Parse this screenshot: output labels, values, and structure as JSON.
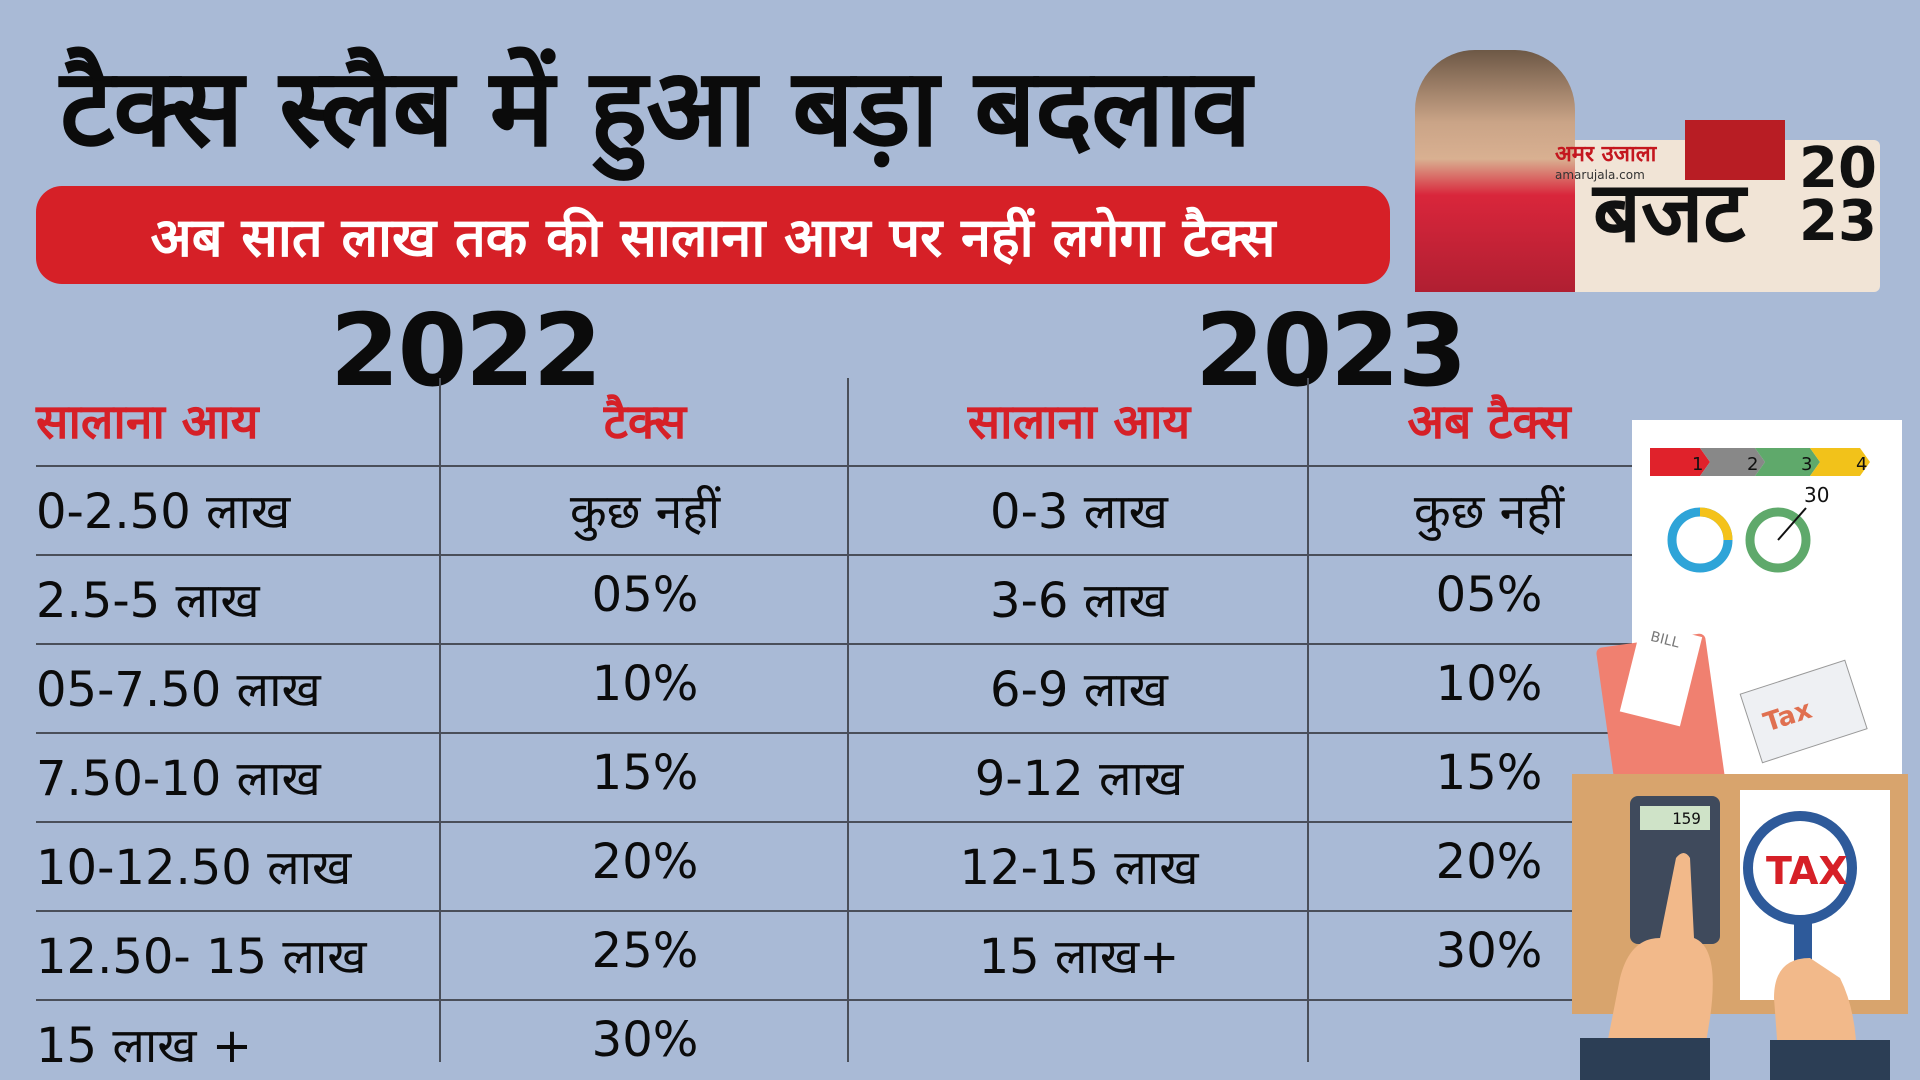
{
  "headline": "टैक्स स्लैब में हुआ बड़ा बदलाव",
  "subtitle": "अब सात लाख तक की सालाना आय पर नहीं लगेगा टैक्स",
  "badge": {
    "brand_hindi": "अमर उजाला",
    "brand_web": "amarujala.com",
    "budget_word": "बजट",
    "year_top": "20",
    "year_bottom": "23"
  },
  "table_2022": {
    "year": "2022",
    "headers": [
      "सालाना आय",
      "टैक्स"
    ],
    "rows": [
      [
        "0-2.50 लाख",
        "कुछ नहीं"
      ],
      [
        "2.5-5 लाख",
        "05%"
      ],
      [
        "05-7.50 लाख",
        "10%"
      ],
      [
        "7.50-10 लाख",
        "15%"
      ],
      [
        "10-12.50 लाख",
        "20%"
      ],
      [
        "12.50- 15 लाख",
        "25%"
      ],
      [
        "15 लाख +",
        "30%"
      ]
    ]
  },
  "table_2023": {
    "year": "2023",
    "headers": [
      "सालाना आय",
      "अब टैक्स"
    ],
    "rows": [
      [
        "0-3 लाख",
        "कुछ नहीं"
      ],
      [
        "3-6 लाख",
        "05%"
      ],
      [
        "6-9 लाख",
        "10%"
      ],
      [
        "9-12 लाख",
        "15%"
      ],
      [
        "12-15 लाख",
        "20%"
      ],
      [
        "15 लाख+",
        "30%"
      ]
    ]
  },
  "illustration": {
    "step_labels": [
      "1",
      "2",
      "3",
      "4"
    ],
    "gauge_value": "30",
    "bill_label": "BILL",
    "envelope_label": "Tax",
    "calculator_display": "159",
    "magnifier_label": "TAX"
  },
  "colors": {
    "background": "#a9bad6",
    "accent_red": "#d62027",
    "text": "#0b0b0b"
  }
}
